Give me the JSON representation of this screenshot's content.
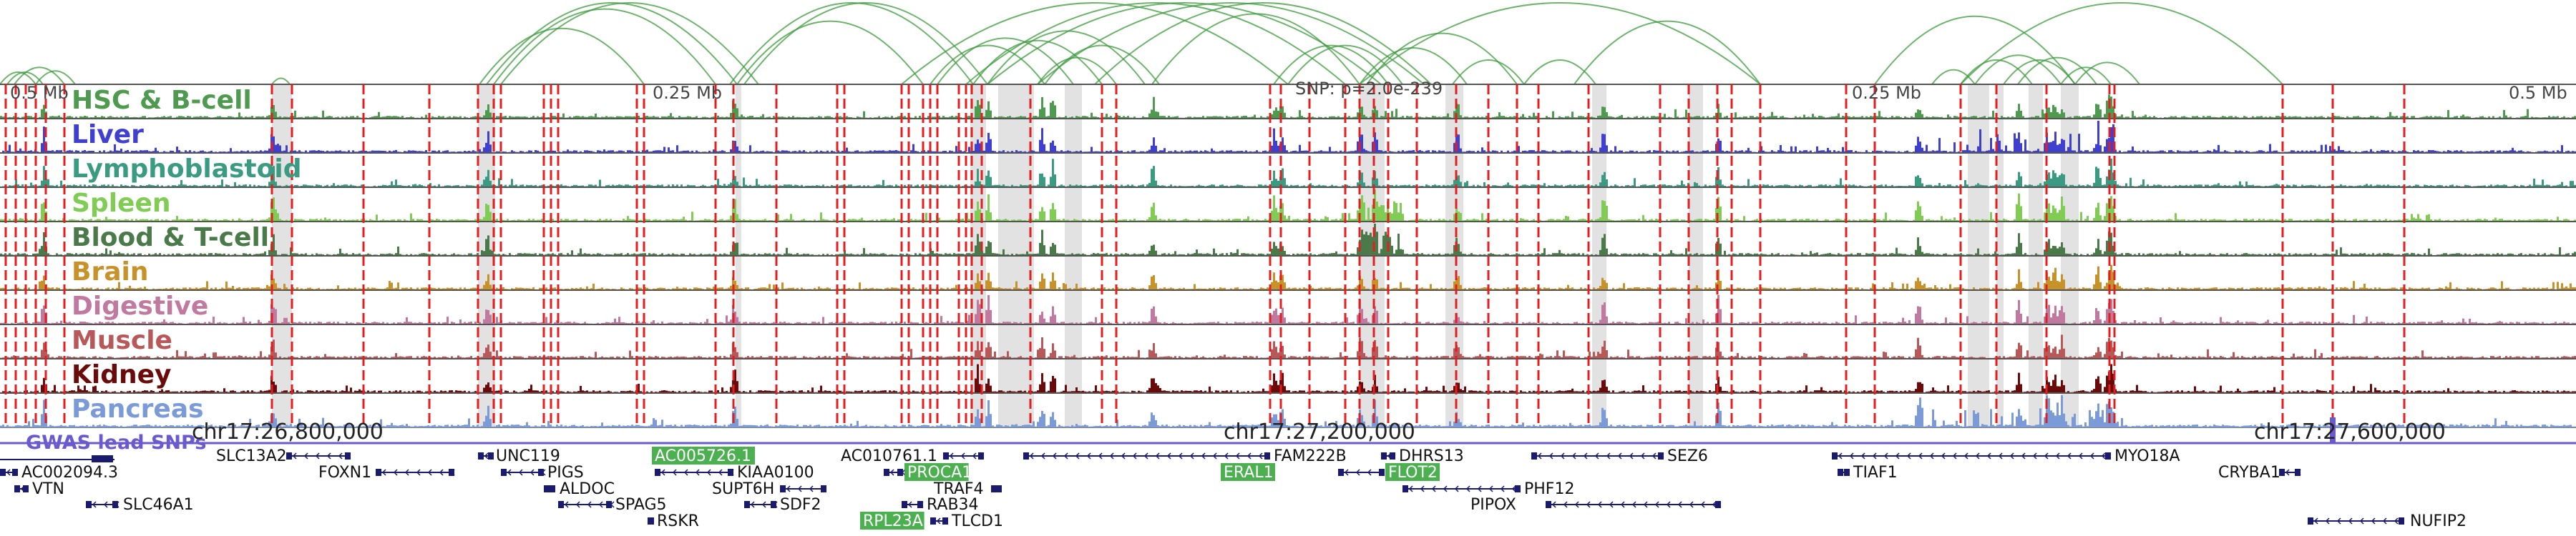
{
  "scale_labels": {
    "left": "0.5 Mb",
    "left_mid": "0.25 Mb",
    "snp": "SNP: p=2.0e-239",
    "right_mid": "0.25 Mb",
    "right": "0.5 Mb"
  },
  "tracks": [
    {
      "label": "HSC & B-cell",
      "color": "#4e9a4e"
    },
    {
      "label": "Liver",
      "color": "#3f3fd0"
    },
    {
      "label": "Lymphoblastoid",
      "color": "#3a9a82"
    },
    {
      "label": "Spleen",
      "color": "#80cc55"
    },
    {
      "label": "Blood & T-cell",
      "color": "#4a7a4a"
    },
    {
      "label": "Brain",
      "color": "#c8922a"
    },
    {
      "label": "Digestive",
      "color": "#c07aa0"
    },
    {
      "label": "Muscle",
      "color": "#b85858"
    },
    {
      "label": "Kidney",
      "color": "#6a0a0a"
    },
    {
      "label": "Pancreas",
      "color": "#7a9ad8"
    }
  ],
  "gwas_label": "GWAS lead SNPs",
  "gwas_color": "#6a5acd",
  "coordinates": [
    "chr17:26,800,000",
    "chr17:27,200,000",
    "chr17:27,600,000"
  ],
  "genes": [
    {
      "name": "SLC13A2",
      "highlight": false
    },
    {
      "name": "UNC119",
      "highlight": false
    },
    {
      "name": "AC005726.1",
      "highlight": true
    },
    {
      "name": "AC010761.1",
      "highlight": false
    },
    {
      "name": "FAM222B",
      "highlight": false
    },
    {
      "name": "DHRS13",
      "highlight": false
    },
    {
      "name": "SEZ6",
      "highlight": false
    },
    {
      "name": "MYO18A",
      "highlight": false
    },
    {
      "name": "AC002094.3",
      "highlight": false
    },
    {
      "name": "FOXN1",
      "highlight": false
    },
    {
      "name": "PIGS",
      "highlight": false
    },
    {
      "name": "KIAA0100",
      "highlight": false
    },
    {
      "name": "PROCA1",
      "highlight": true
    },
    {
      "name": "ERAL1",
      "highlight": true
    },
    {
      "name": "FLOT2",
      "highlight": true
    },
    {
      "name": "TIAF1",
      "highlight": false
    },
    {
      "name": "CRYBA1",
      "highlight": false
    },
    {
      "name": "VTN",
      "highlight": false
    },
    {
      "name": "ALDOC",
      "highlight": false
    },
    {
      "name": "SUPT6H",
      "highlight": false
    },
    {
      "name": "TRAF4",
      "highlight": false
    },
    {
      "name": "PHF12",
      "highlight": false
    },
    {
      "name": "SLC46A1",
      "highlight": false
    },
    {
      "name": "SPAG5",
      "highlight": false
    },
    {
      "name": "SDF2",
      "highlight": false
    },
    {
      "name": "RAB34",
      "highlight": false
    },
    {
      "name": "PIPOX",
      "highlight": false
    },
    {
      "name": "RSKR",
      "highlight": false
    },
    {
      "name": "RPL23A",
      "highlight": true
    },
    {
      "name": "TLCD1",
      "highlight": false
    },
    {
      "name": "NUFIP2",
      "highlight": false
    }
  ],
  "colors": {
    "loop": "#3f9a3f",
    "snp_line": "#e02020",
    "highlight_band": "#cfcfcf",
    "gene_body": "#1a1a6e",
    "gene_highlight_bg": "#4caf50",
    "track_border": "#555555"
  }
}
